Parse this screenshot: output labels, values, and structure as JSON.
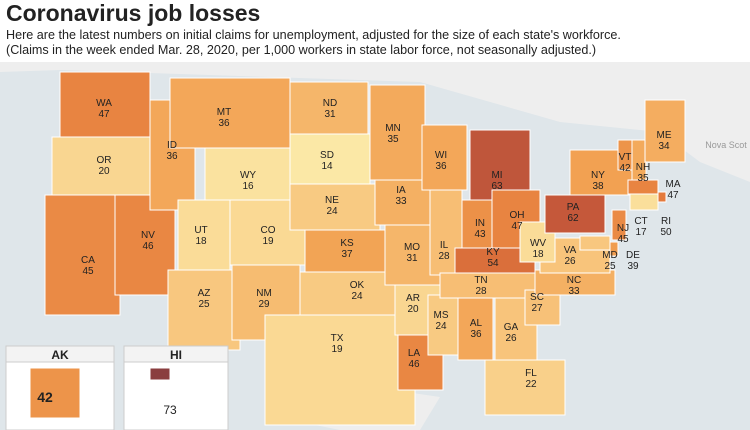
{
  "header": {
    "title": "Coronavirus job losses",
    "subtitle": "Here are the latest numbers on initial claims for unemployment, adjusted for the size of each state's workforce.",
    "note": "(Claims in the week ended Mar. 28, 2020, per 1,000 workers in state labor force, not seasonally adjusted.)"
  },
  "map": {
    "colors": [
      "#fbe8a6",
      "#f8c57c",
      "#f2a253",
      "#e57c3c",
      "#c95a3a",
      "#8a3e3f"
    ],
    "neighbor_label": "Nova Scot",
    "states": [
      {
        "abbr": "WA",
        "value": 47
      },
      {
        "abbr": "OR",
        "value": 20
      },
      {
        "abbr": "CA",
        "value": 45
      },
      {
        "abbr": "NV",
        "value": 46
      },
      {
        "abbr": "ID",
        "value": 36
      },
      {
        "abbr": "MT",
        "value": 36
      },
      {
        "abbr": "WY",
        "value": 16
      },
      {
        "abbr": "UT",
        "value": 18
      },
      {
        "abbr": "AZ",
        "value": 25
      },
      {
        "abbr": "CO",
        "value": 19
      },
      {
        "abbr": "NM",
        "value": 29
      },
      {
        "abbr": "ND",
        "value": 31
      },
      {
        "abbr": "SD",
        "value": 14
      },
      {
        "abbr": "NE",
        "value": 24
      },
      {
        "abbr": "KS",
        "value": 37
      },
      {
        "abbr": "OK",
        "value": 24
      },
      {
        "abbr": "TX",
        "value": 19
      },
      {
        "abbr": "MN",
        "value": 35
      },
      {
        "abbr": "IA",
        "value": 33
      },
      {
        "abbr": "MO",
        "value": 31
      },
      {
        "abbr": "AR",
        "value": 20
      },
      {
        "abbr": "LA",
        "value": 46
      },
      {
        "abbr": "WI",
        "value": 36
      },
      {
        "abbr": "IL",
        "value": 28
      },
      {
        "abbr": "MS",
        "value": 24
      },
      {
        "abbr": "MI",
        "value": 63
      },
      {
        "abbr": "IN",
        "value": 43
      },
      {
        "abbr": "OH",
        "value": 47
      },
      {
        "abbr": "KY",
        "value": 54
      },
      {
        "abbr": "TN",
        "value": 28
      },
      {
        "abbr": "AL",
        "value": 36
      },
      {
        "abbr": "GA",
        "value": 26
      },
      {
        "abbr": "FL",
        "value": 22
      },
      {
        "abbr": "SC",
        "value": 27
      },
      {
        "abbr": "NC",
        "value": 33
      },
      {
        "abbr": "VA",
        "value": 26
      },
      {
        "abbr": "WV",
        "value": 18
      },
      {
        "abbr": "PA",
        "value": 62
      },
      {
        "abbr": "NY",
        "value": 38
      },
      {
        "abbr": "VT",
        "value": 42
      },
      {
        "abbr": "NH",
        "value": 35
      },
      {
        "abbr": "ME",
        "value": 34
      },
      {
        "abbr": "MA",
        "value": 47
      },
      {
        "abbr": "RI",
        "value": 50
      },
      {
        "abbr": "CT",
        "value": 17
      },
      {
        "abbr": "NJ",
        "value": 45
      },
      {
        "abbr": "DE",
        "value": 39
      },
      {
        "abbr": "MD",
        "value": 25
      }
    ],
    "insets": [
      {
        "abbr": "AK",
        "value": 42
      },
      {
        "abbr": "HI",
        "value": 73
      }
    ]
  }
}
